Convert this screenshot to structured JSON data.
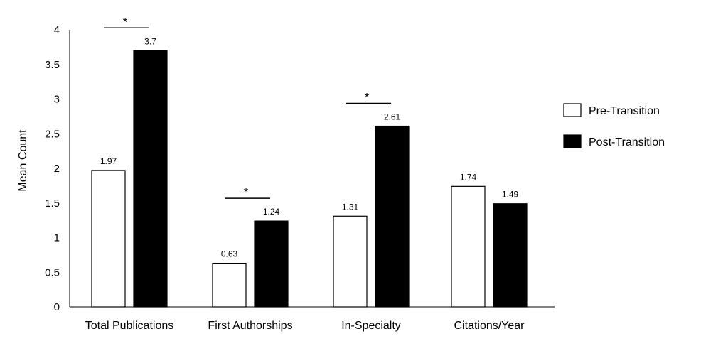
{
  "chart_data": {
    "type": "bar",
    "categories": [
      "Total Publications",
      "First Authorships",
      "In-Specialty",
      "Citations/Year"
    ],
    "series": [
      {
        "name": "Pre-Transition",
        "values": [
          1.97,
          0.63,
          1.31,
          1.74
        ],
        "color": "#ffffff"
      },
      {
        "name": "Post-Transition",
        "values": [
          3.7,
          1.24,
          2.61,
          1.49
        ],
        "color": "#000000"
      }
    ],
    "data_labels": [
      [
        "1.97",
        "0.63",
        "1.31",
        "1.74"
      ],
      [
        "3.7",
        "1.24",
        "2.61",
        "1.49"
      ]
    ],
    "yticks": [
      "0",
      "0.5",
      "1",
      "1.5",
      "2",
      "2.5",
      "3",
      "3.5",
      "4"
    ],
    "ylabel": "Mean Count",
    "xlabel": "",
    "ylim": [
      0,
      4
    ],
    "grid": false,
    "legend": "right",
    "significance": [
      {
        "category_index": 0,
        "label": "*"
      },
      {
        "category_index": 1,
        "label": "*"
      },
      {
        "category_index": 2,
        "label": "*"
      }
    ]
  }
}
